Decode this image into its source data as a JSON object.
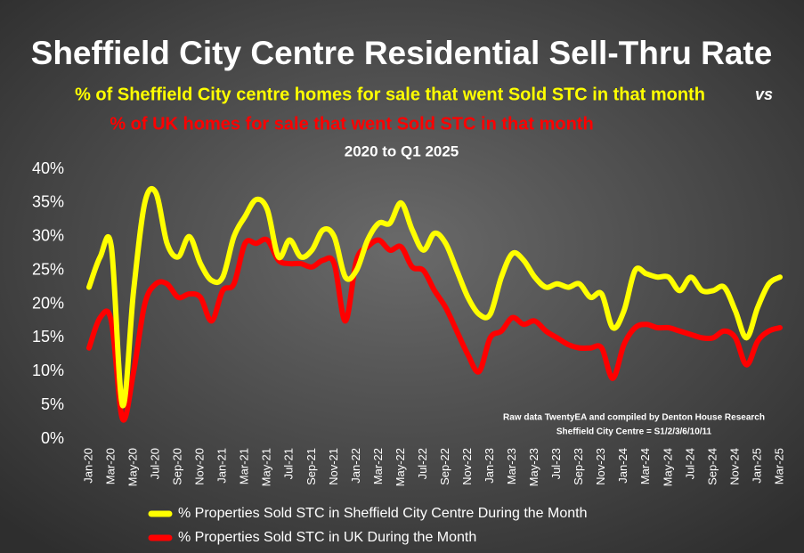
{
  "chart_data": {
    "type": "line",
    "title": "Sheffield City Centre Residential Sell-Thru Rate",
    "subtitle": [
      "% of Sheffield City centre homes for sale that went Sold STC in that month",
      "vs",
      "% of UK homes for sale that went Sold STC in that month",
      "2020 to Q1 2025"
    ],
    "annotations": [
      "Raw data TwentyEA and compiled by Denton House Research",
      "Sheffield City Centre  = S1/2/3/6/10/11"
    ],
    "categories": [
      "Jan-20",
      null,
      "Mar-20",
      null,
      "May-20",
      null,
      "Jul-20",
      null,
      "Sep-20",
      null,
      "Nov-20",
      null,
      "Jan-21",
      null,
      "Mar-21",
      null,
      "May-21",
      null,
      "Jul-21",
      null,
      "Sep-21",
      null,
      "Nov-21",
      null,
      "Jan-22",
      null,
      "Mar-22",
      null,
      "May-22",
      null,
      "Jul-22",
      null,
      "Sep-22",
      null,
      "Nov-22",
      null,
      "Jan-23",
      null,
      "Mar-23",
      null,
      "May-23",
      null,
      "Jul-23",
      null,
      "Sep-23",
      null,
      "Nov-23",
      null,
      "Jan-24",
      null,
      "Mar-24",
      null,
      "May-24",
      null,
      "Jul-24",
      null,
      "Sep-24",
      null,
      "Nov-24",
      null,
      "Jan-25",
      null,
      "Mar-25"
    ],
    "series": [
      {
        "name": "% Properties Sold STC in Sheffield City Centre During the Month",
        "color": "#ffff00",
        "values": [
          22.5,
          27,
          28.5,
          5,
          22,
          35,
          36.5,
          29,
          27,
          30,
          26,
          23.5,
          24,
          30,
          33,
          35.5,
          34,
          27,
          29.5,
          27,
          28,
          31,
          30,
          24,
          25,
          29.5,
          32,
          32,
          35,
          31,
          28,
          30.5,
          29,
          25,
          21,
          18.5,
          18.5,
          24,
          27.5,
          26.5,
          24,
          22.5,
          23,
          22.5,
          23,
          21,
          21.5,
          16.5,
          19,
          25,
          24.5,
          24,
          24,
          22,
          24,
          22,
          22,
          22.5,
          19,
          15,
          19.5,
          23,
          24
        ]
      },
      {
        "name": "% Properties Sold STC in UK During the Month",
        "color": "#ff0000",
        "values": [
          13.5,
          18,
          17.5,
          3,
          10,
          20,
          23,
          23,
          21,
          21.5,
          21,
          17.5,
          22,
          23,
          29,
          29,
          29.5,
          26.5,
          26,
          26,
          25.5,
          26.5,
          26,
          17.5,
          26.5,
          28.5,
          29.5,
          28,
          28.5,
          25.5,
          25,
          22,
          19.5,
          16,
          12.5,
          10,
          15,
          16,
          18,
          17,
          17.5,
          16,
          15,
          14,
          13.5,
          13.5,
          13.5,
          9,
          14,
          16.5,
          17,
          16.5,
          16.5,
          16,
          15.5,
          15,
          15,
          16,
          15,
          11,
          14.5,
          16,
          16.5
        ]
      }
    ],
    "ylim": [
      0,
      40
    ],
    "yticks": [
      {
        "value": 0,
        "label": "0%"
      },
      {
        "value": 5,
        "label": "5%"
      },
      {
        "value": 10,
        "label": "10%"
      },
      {
        "value": 15,
        "label": "15%"
      },
      {
        "value": 20,
        "label": "20%"
      },
      {
        "value": 25,
        "label": "25%"
      },
      {
        "value": 30,
        "label": "30%"
      },
      {
        "value": 35,
        "label": "35%"
      },
      {
        "value": 40,
        "label": "40%"
      }
    ],
    "legend": "bottom"
  }
}
